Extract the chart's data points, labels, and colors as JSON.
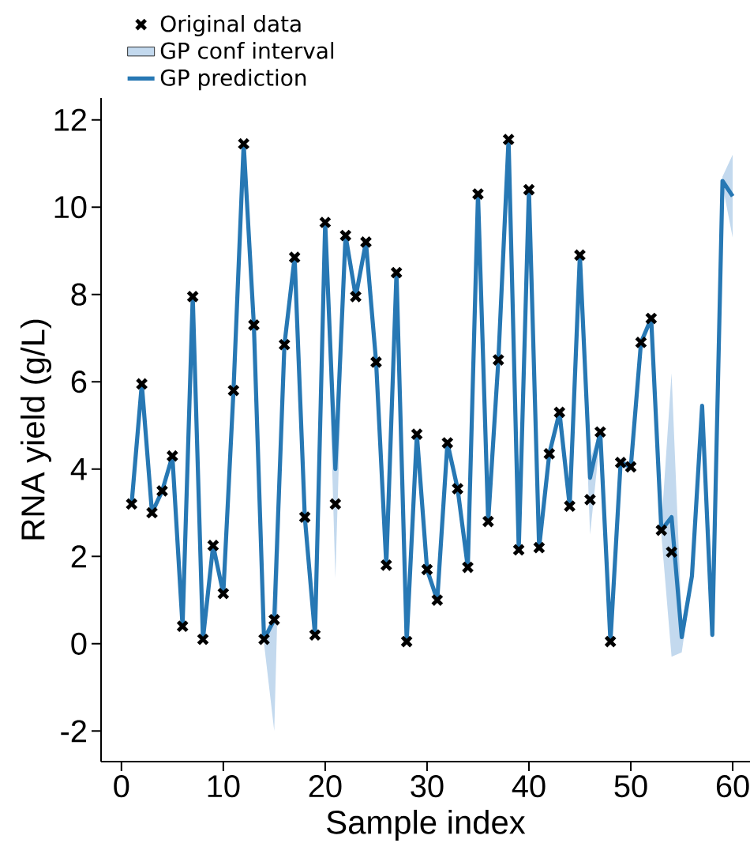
{
  "chart_data": {
    "type": "line",
    "xlabel": "Sample index",
    "ylabel": "RNA yield (g/L)",
    "xlim": [
      -2,
      61.7
    ],
    "ylim": [
      -2.7,
      12.5
    ],
    "xticks": [
      0,
      10,
      20,
      30,
      40,
      50,
      60
    ],
    "yticks": [
      -2,
      0,
      2,
      4,
      6,
      8,
      10,
      12
    ],
    "legend": "top left",
    "series": [
      {
        "name": "Original data",
        "type": "scatter",
        "marker": "cross",
        "color": "#000000",
        "x": [
          1,
          2,
          3,
          4,
          5,
          6,
          7,
          8,
          9,
          10,
          11,
          12,
          13,
          14,
          15,
          16,
          17,
          18,
          19,
          20,
          21,
          22,
          23,
          24,
          25,
          26,
          27,
          28,
          29,
          30,
          31,
          32,
          33,
          34,
          35,
          36,
          37,
          38,
          39,
          40,
          41,
          42,
          43,
          44,
          45,
          46,
          47,
          48,
          49,
          50,
          51,
          52,
          53,
          54
        ],
        "values": [
          3.2,
          5.95,
          3.0,
          3.5,
          4.3,
          0.4,
          7.95,
          0.1,
          2.25,
          1.15,
          5.8,
          11.45,
          7.3,
          0.1,
          0.55,
          6.85,
          8.85,
          2.9,
          0.2,
          9.65,
          3.2,
          9.35,
          7.95,
          9.2,
          6.45,
          1.8,
          8.5,
          0.05,
          4.8,
          1.7,
          1.0,
          4.6,
          3.55,
          1.75,
          10.3,
          2.8,
          6.5,
          11.55,
          2.15,
          10.4,
          2.2,
          4.35,
          5.3,
          3.15,
          8.9,
          3.3,
          4.85,
          0.05,
          4.15,
          4.05,
          6.9,
          7.45,
          2.6,
          2.1
        ]
      },
      {
        "name": "GP conf interval",
        "type": "area",
        "color": "#c3d9ee"
      },
      {
        "name": "GP prediction",
        "color": "#2778b4",
        "x": [
          1,
          2,
          3,
          4,
          5,
          6,
          7,
          8,
          9,
          10,
          11,
          12,
          13,
          14,
          15,
          16,
          17,
          18,
          19,
          20,
          21,
          22,
          23,
          24,
          25,
          26,
          27,
          28,
          29,
          30,
          31,
          32,
          33,
          34,
          35,
          36,
          37,
          38,
          39,
          40,
          41,
          42,
          43,
          44,
          45,
          46,
          47,
          48,
          49,
          50,
          51,
          52,
          53,
          54,
          55,
          56,
          57,
          58,
          59,
          60
        ],
        "values": [
          3.2,
          5.95,
          3.0,
          3.5,
          4.3,
          0.4,
          7.95,
          0.1,
          2.25,
          1.15,
          5.8,
          11.45,
          7.3,
          0.1,
          0.55,
          6.85,
          8.85,
          2.9,
          0.2,
          9.65,
          4.0,
          9.35,
          7.95,
          9.2,
          6.45,
          1.8,
          8.5,
          0.05,
          4.8,
          1.7,
          1.0,
          4.6,
          3.55,
          1.75,
          10.3,
          2.8,
          6.5,
          11.55,
          2.15,
          10.4,
          2.2,
          4.35,
          5.3,
          3.15,
          8.9,
          3.8,
          4.85,
          0.05,
          4.15,
          4.05,
          6.9,
          7.45,
          2.6,
          2.9,
          0.15,
          1.55,
          5.45,
          0.2,
          10.6,
          10.25
        ],
        "lower": [
          3.1,
          5.85,
          2.9,
          3.4,
          4.2,
          0.3,
          7.85,
          0.0,
          2.15,
          1.05,
          5.7,
          11.35,
          7.2,
          0.0,
          -2.0,
          6.75,
          8.75,
          2.8,
          0.1,
          9.55,
          1.5,
          9.25,
          7.85,
          9.1,
          6.35,
          1.7,
          8.4,
          -0.05,
          4.7,
          1.6,
          0.9,
          4.5,
          3.45,
          1.65,
          10.2,
          2.7,
          6.4,
          11.45,
          2.05,
          10.3,
          2.1,
          4.25,
          5.2,
          3.05,
          8.8,
          2.5,
          4.75,
          -0.05,
          4.05,
          3.95,
          6.8,
          7.35,
          2.5,
          -0.3,
          -0.2,
          1.45,
          5.35,
          0.1,
          10.5,
          9.3
        ],
        "upper": [
          3.3,
          6.05,
          3.1,
          3.6,
          4.4,
          0.5,
          8.05,
          0.2,
          2.35,
          1.25,
          5.9,
          11.55,
          7.4,
          0.2,
          0.7,
          6.95,
          8.95,
          3.0,
          0.3,
          9.75,
          4.3,
          9.45,
          8.05,
          9.3,
          6.55,
          1.9,
          8.6,
          0.15,
          4.9,
          1.8,
          1.1,
          4.7,
          3.65,
          1.85,
          10.4,
          2.9,
          6.6,
          11.65,
          2.25,
          10.5,
          2.3,
          4.45,
          5.4,
          3.25,
          9.0,
          4.2,
          4.95,
          0.15,
          4.25,
          4.15,
          7.0,
          7.55,
          2.7,
          6.2,
          0.5,
          1.65,
          5.55,
          0.3,
          10.7,
          11.2
        ]
      }
    ]
  }
}
